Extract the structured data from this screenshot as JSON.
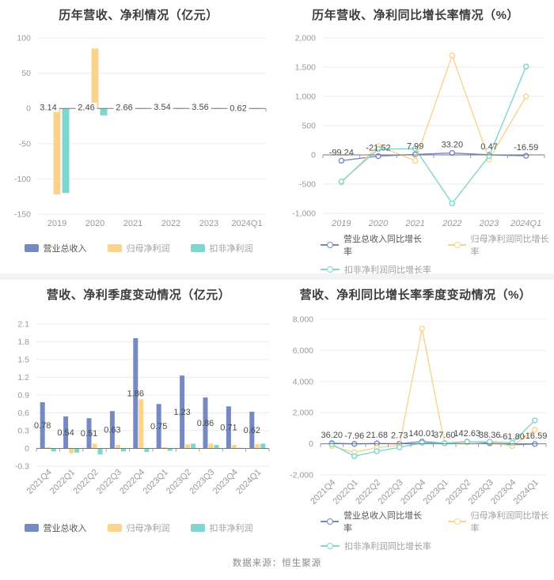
{
  "page": {
    "footer": "数据来源：恒生聚源"
  },
  "colors": {
    "series": {
      "revenue": "#7589c4",
      "net_profit": "#fbd38b",
      "non_gaap": "#7dd6d0"
    },
    "grid": "#ebebeb",
    "axis": "#73767c",
    "tick": "#999999",
    "label": "#4a4a4a",
    "title": "#3c3c3c",
    "footer": "#8a8a8a",
    "legend_active": "#555555",
    "legend_muted": "#a0a0a0",
    "background": "#ffffff",
    "gutter": "#f1f3f6"
  },
  "chart_data": [
    {
      "id": "annual-values",
      "type": "bar",
      "title": "历年营收、净利情况（亿元）",
      "categories": [
        "2019",
        "2020",
        "2021",
        "2022",
        "2023",
        "2024Q1"
      ],
      "ylim": [
        -150,
        100
      ],
      "ytick_values": [
        100,
        50,
        0,
        -50,
        -100,
        -150
      ],
      "ytick_labels": [
        "100",
        "50",
        "0",
        "-50",
        "-100",
        "-150"
      ],
      "grid": true,
      "label_bg": true,
      "series": [
        {
          "name": "营业总收入",
          "color": "revenue",
          "values": [
            3.14,
            2.46,
            2.66,
            3.54,
            3.56,
            0.62
          ],
          "labels": [
            "3.14",
            "2.46",
            "2.66",
            "3.54",
            "3.56",
            "0.62"
          ]
        },
        {
          "name": "归母净利润",
          "color": "net_profit",
          "values": [
            -122,
            85,
            0.5,
            0.6,
            0.5,
            0.2
          ]
        },
        {
          "name": "扣非净利润",
          "color": "non_gaap",
          "values": [
            -120,
            -10,
            0.4,
            0.5,
            0.4,
            0.2
          ]
        }
      ],
      "legend": {
        "align": "center",
        "rows": [
          [
            0,
            1,
            2
          ]
        ]
      }
    },
    {
      "id": "annual-growth",
      "type": "line",
      "title": "历年营收、净利同比增长率情况（%）",
      "categories": [
        "2019",
        "2020",
        "2021",
        "2022",
        "2023",
        "2024Q1"
      ],
      "ylim": [
        -1000,
        2000
      ],
      "ytick_values": [
        2000,
        1500,
        1000,
        500,
        0,
        -500,
        -1000
      ],
      "ytick_labels": [
        "2,000",
        "1,500",
        "1,000",
        "500",
        "0",
        "-500",
        "-1,000"
      ],
      "grid": true,
      "series": [
        {
          "name": "营业总收入同比增长率",
          "color": "revenue",
          "values": [
            -99.24,
            -21.52,
            7.99,
            33.2,
            0.47,
            -16.59
          ],
          "labels": [
            "-99.24",
            "-21.52",
            "7.99",
            "33.20",
            "0.47",
            "-16.59"
          ]
        },
        {
          "name": "归母净利润同比增长率",
          "color": "net_profit",
          "values": [
            -470,
            150,
            -100,
            1700,
            -80,
            1000
          ]
        },
        {
          "name": "扣非净利润同比增长率",
          "color": "non_gaap",
          "values": [
            -455,
            100,
            105,
            -830,
            -20,
            1510
          ]
        }
      ],
      "legend": {
        "align": "left",
        "rows": [
          [
            0,
            1
          ],
          [
            2
          ]
        ]
      }
    },
    {
      "id": "quarterly-values",
      "type": "bar",
      "title": "营收、净利季度变动情况（亿元）",
      "categories": [
        "2021Q4",
        "2022Q1",
        "2022Q2",
        "2022Q3",
        "2022Q4",
        "2023Q1",
        "2023Q2",
        "2023Q3",
        "2023Q4",
        "2024Q1"
      ],
      "ylim": [
        -0.3,
        2.1
      ],
      "ytick_values": [
        2.1,
        1.8,
        1.5,
        1.2,
        0.9,
        0.6,
        0.3,
        0,
        -0.3
      ],
      "ytick_labels": [
        "2.1",
        "1.8",
        "1.5",
        "1.2",
        "0.9",
        "0.6",
        "0.3",
        "0",
        "-0.3"
      ],
      "grid": true,
      "xlabel_rotate": -45,
      "series": [
        {
          "name": "营业总收入",
          "color": "revenue",
          "values": [
            0.78,
            0.54,
            0.51,
            0.63,
            1.86,
            0.75,
            1.23,
            0.86,
            0.71,
            0.62
          ],
          "labels": [
            "0.78",
            "0.54",
            "0.51",
            "0.63",
            "1.86",
            "0.75",
            "1.23",
            "0.86",
            "0.71",
            "0.62"
          ]
        },
        {
          "name": "归母净利润",
          "color": "net_profit",
          "values": [
            0.02,
            -0.08,
            0.08,
            0.06,
            0.83,
            0.02,
            0.07,
            0.08,
            0.06,
            0.07
          ]
        },
        {
          "name": "扣非净利润",
          "color": "non_gaap",
          "values": [
            -0.05,
            -0.07,
            -0.1,
            -0.05,
            -0.06,
            -0.04,
            0.08,
            0.06,
            0.01,
            0.08
          ]
        }
      ],
      "legend": {
        "align": "center",
        "rows": [
          [
            0,
            1,
            2
          ]
        ]
      }
    },
    {
      "id": "quarterly-growth",
      "type": "line",
      "title": "营收、净利同比增长率季度变动情况（%）",
      "categories": [
        "2021Q4",
        "2022Q1",
        "2022Q2",
        "2022Q3",
        "2022Q4",
        "2023Q1",
        "2023Q2",
        "2023Q3",
        "2023Q4",
        "2024Q1"
      ],
      "ylim": [
        -2000,
        8000
      ],
      "ytick_values": [
        8000,
        6000,
        4000,
        2000,
        0,
        -2000
      ],
      "ytick_labels": [
        "8,000",
        "6,000",
        "4,000",
        "2,000",
        "0",
        "-2,000"
      ],
      "grid": true,
      "xlabel_rotate": -45,
      "series": [
        {
          "name": "营业总收入同比增长率",
          "color": "revenue",
          "values": [
            36.2,
            -7.96,
            21.68,
            2.73,
            140.01,
            37.6,
            142.63,
            38.36,
            -61.8,
            -16.59
          ],
          "labels": [
            "36.20",
            "-7.96",
            "21.68",
            "2.73",
            "140.01",
            "37.60",
            "142.63",
            "38.36",
            "-61.80",
            "-16.59"
          ]
        },
        {
          "name": "归母净利润同比增长率",
          "color": "net_profit",
          "values": [
            -150,
            -550,
            -250,
            -100,
            7400,
            30,
            100,
            120,
            -150,
            900
          ]
        },
        {
          "name": "扣非净利润同比增长率",
          "color": "non_gaap",
          "values": [
            -30,
            -800,
            -480,
            -230,
            60,
            30,
            130,
            130,
            60,
            1500
          ]
        }
      ],
      "legend": {
        "align": "left",
        "rows": [
          [
            0,
            1
          ],
          [
            2
          ]
        ]
      }
    }
  ]
}
